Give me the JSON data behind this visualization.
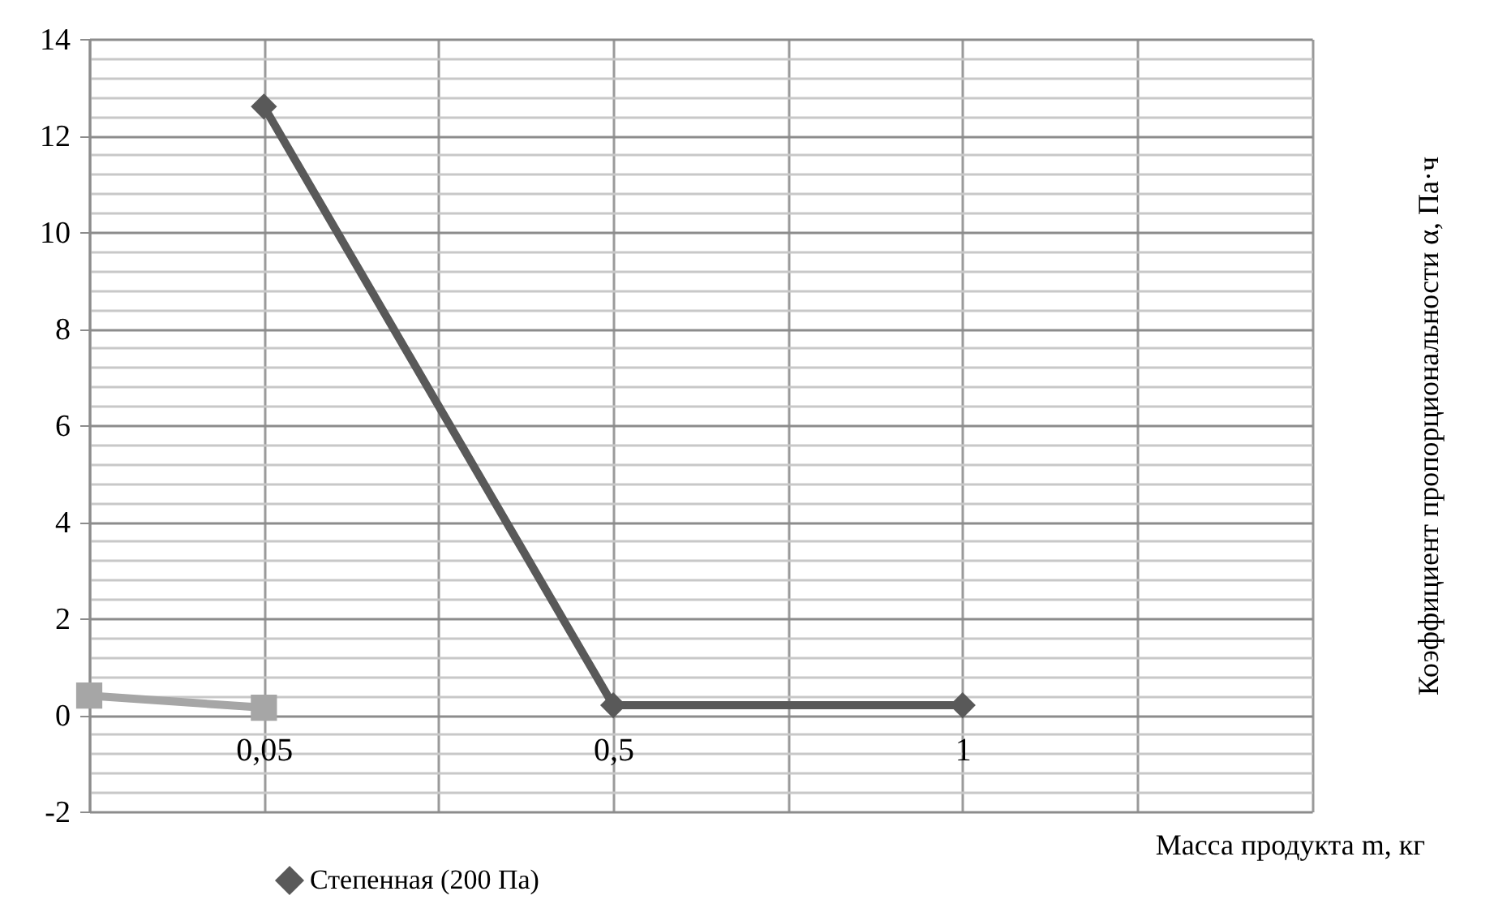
{
  "chart_data": {
    "type": "line",
    "xlabel": "Масса продукта m, кг",
    "ylabel": "Коэффициент пропорциональности α, Па·ч",
    "categories": [
      null,
      "0,05",
      null,
      "0,5",
      null,
      "1",
      null,
      null
    ],
    "series": [
      {
        "name": "Степенная (200 Па)",
        "color": "#595959",
        "marker": "diamond",
        "values": [
          null,
          12.6,
          null,
          0.2,
          null,
          0.2,
          null,
          null
        ]
      },
      {
        "color": "#a6a6a6",
        "marker": "square",
        "values": [
          0.4,
          0.15,
          null,
          null,
          null,
          null,
          null,
          null
        ]
      }
    ],
    "ylim": [
      -2,
      14
    ],
    "yticks": [
      -2,
      0,
      2,
      4,
      6,
      8,
      10,
      12,
      14
    ],
    "grid": true,
    "legend": "bottom"
  }
}
